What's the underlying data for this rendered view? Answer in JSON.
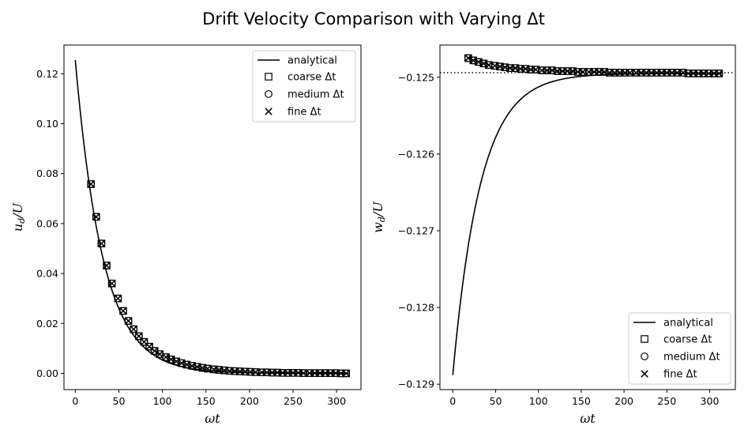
{
  "figure_title": "Drift Velocity Comparison with Varying Δt",
  "legend_labels": [
    "analytical",
    "coarse Δt",
    "medium Δt",
    "fine Δt"
  ],
  "colors": {
    "line": "#000000",
    "markers": "#000000",
    "frame": "#000000"
  },
  "chart_data": [
    {
      "type": "line+scatter",
      "xlabel": "ωt",
      "ylabel": "u_d/U",
      "xlim": [
        -13,
        328
      ],
      "ylim": [
        -0.0065,
        0.1315
      ],
      "xticks": [
        0,
        50,
        100,
        150,
        200,
        250,
        300
      ],
      "yticks": [
        0.0,
        0.02,
        0.04,
        0.06,
        0.08,
        0.1,
        0.12
      ],
      "ytick_labels": [
        "0.00",
        "0.02",
        "0.04",
        "0.06",
        "0.08",
        "0.10",
        "0.12"
      ],
      "legend": "top-right",
      "grid": false,
      "analytical": {
        "name": "analytical",
        "formula_note": "exponential decay",
        "y0": 0.1255,
        "decay": 0.0315
      },
      "series": [
        {
          "name": "coarse Δt",
          "marker": "square",
          "x": [
            18,
            24,
            30,
            36,
            42,
            49,
            55,
            61,
            67,
            73,
            79,
            85,
            91,
            97,
            104,
            110,
            116,
            122,
            128,
            134,
            140,
            146,
            152,
            159,
            165,
            171,
            177,
            183,
            189,
            195,
            201,
            207,
            214,
            220,
            226,
            232,
            238,
            244,
            250,
            256,
            262,
            269,
            275,
            281,
            287,
            293,
            299,
            305,
            311
          ],
          "y": [
            0.0758,
            0.0627,
            0.052,
            0.0432,
            0.036,
            0.03,
            0.025,
            0.021,
            0.0177,
            0.0149,
            0.0126,
            0.0107,
            0.009,
            0.0077,
            0.0065,
            0.0056,
            0.0048,
            0.0041,
            0.0035,
            0.003,
            0.0026,
            0.0022,
            0.0019,
            0.0016,
            0.0014,
            0.0012,
            0.001,
            0.0009,
            0.0008,
            0.0007,
            0.0006,
            0.0005,
            0.0004,
            0.0004,
            0.0003,
            0.0003,
            0.0002,
            0.0002,
            0.0002,
            0.0002,
            0.0001,
            0.0001,
            0.0001,
            0.0001,
            0.0001,
            0.0001,
            0.0001,
            0.0,
            0.0
          ]
        },
        {
          "name": "medium Δt",
          "marker": "circle",
          "x": [
            18,
            24,
            30,
            36,
            42,
            49,
            55,
            61,
            67,
            73,
            79,
            85,
            91,
            97,
            104,
            110,
            116,
            122,
            128,
            134,
            140,
            146,
            152,
            159,
            165,
            171,
            177,
            183,
            189,
            195,
            201,
            207,
            214,
            220,
            226,
            232,
            238,
            244,
            250,
            256,
            262,
            269,
            275,
            281,
            287,
            293,
            299,
            305,
            311
          ],
          "y": [
            0.0758,
            0.0627,
            0.052,
            0.0432,
            0.036,
            0.03,
            0.025,
            0.021,
            0.0177,
            0.0149,
            0.0126,
            0.0107,
            0.009,
            0.0077,
            0.0065,
            0.0056,
            0.0048,
            0.0041,
            0.0035,
            0.003,
            0.0026,
            0.0022,
            0.0019,
            0.0016,
            0.0014,
            0.0012,
            0.001,
            0.0009,
            0.0008,
            0.0007,
            0.0006,
            0.0005,
            0.0004,
            0.0004,
            0.0003,
            0.0003,
            0.0002,
            0.0002,
            0.0002,
            0.0002,
            0.0001,
            0.0001,
            0.0001,
            0.0001,
            0.0001,
            0.0001,
            0.0001,
            0.0,
            0.0
          ]
        },
        {
          "name": "fine Δt",
          "marker": "x",
          "x": [
            18,
            24,
            30,
            36,
            42,
            49,
            55,
            61,
            67,
            73,
            79,
            85,
            91,
            97,
            104,
            110,
            116,
            122,
            128,
            134,
            140,
            146,
            152,
            159,
            165,
            171,
            177,
            183,
            189,
            195,
            201,
            207,
            214,
            220,
            226,
            232,
            238,
            244,
            250,
            256,
            262,
            269,
            275,
            281,
            287,
            293,
            299,
            305,
            311
          ],
          "y": [
            0.0758,
            0.0627,
            0.052,
            0.0432,
            0.036,
            0.03,
            0.025,
            0.021,
            0.0177,
            0.0149,
            0.0126,
            0.0107,
            0.009,
            0.0077,
            0.0065,
            0.0056,
            0.0048,
            0.0041,
            0.0035,
            0.003,
            0.0026,
            0.0022,
            0.0019,
            0.0016,
            0.0014,
            0.0012,
            0.001,
            0.0009,
            0.0008,
            0.0007,
            0.0006,
            0.0005,
            0.0004,
            0.0004,
            0.0003,
            0.0003,
            0.0002,
            0.0002,
            0.0002,
            0.0002,
            0.0001,
            0.0001,
            0.0001,
            0.0001,
            0.0001,
            0.0001,
            0.0001,
            0.0,
            0.0
          ]
        }
      ]
    },
    {
      "type": "line+scatter",
      "xlabel": "ωt",
      "ylabel": "w_d/U",
      "xlim": [
        -15,
        330
      ],
      "ylim": [
        -0.12907,
        -0.12458
      ],
      "xticks": [
        0,
        50,
        100,
        150,
        200,
        250,
        300
      ],
      "yticks": [
        -0.129,
        -0.128,
        -0.127,
        -0.126,
        -0.125
      ],
      "ytick_labels": [
        "−0.129",
        "−0.128",
        "−0.127",
        "−0.126",
        "−0.125"
      ],
      "legend": "bottom-right",
      "grid": false,
      "reference_line": {
        "y": -0.12494,
        "style": "dotted"
      },
      "analytical": {
        "name": "analytical",
        "y_inf": -0.12495,
        "y0": -0.12888,
        "decay": 0.031
      },
      "series": [
        {
          "name": "coarse Δt",
          "marker": "square",
          "x": [
            18,
            24,
            30,
            36,
            42,
            49,
            55,
            61,
            67,
            73,
            79,
            85,
            91,
            97,
            104,
            110,
            116,
            122,
            128,
            134,
            140,
            146,
            152,
            159,
            165,
            171,
            177,
            183,
            189,
            195,
            201,
            207,
            214,
            220,
            226,
            232,
            238,
            244,
            250,
            256,
            262,
            269,
            275,
            281,
            287,
            293,
            299,
            305,
            311
          ],
          "y": [
            -0.12475,
            -0.12478,
            -0.1248,
            -0.12482,
            -0.12484,
            -0.12485,
            -0.12486,
            -0.12487,
            -0.12488,
            -0.12488,
            -0.12489,
            -0.12489,
            -0.1249,
            -0.1249,
            -0.12491,
            -0.12491,
            -0.12491,
            -0.12492,
            -0.12492,
            -0.12492,
            -0.12492,
            -0.12493,
            -0.12493,
            -0.12493,
            -0.12493,
            -0.12493,
            -0.12493,
            -0.12494,
            -0.12494,
            -0.12494,
            -0.12494,
            -0.12494,
            -0.12494,
            -0.12494,
            -0.12494,
            -0.12494,
            -0.12494,
            -0.12494,
            -0.12494,
            -0.12494,
            -0.12494,
            -0.12494,
            -0.12495,
            -0.12495,
            -0.12495,
            -0.12495,
            -0.12495,
            -0.12495,
            -0.12495
          ]
        },
        {
          "name": "medium Δt",
          "marker": "circle",
          "x": [
            18,
            24,
            30,
            36,
            42,
            49,
            55,
            61,
            67,
            73,
            79,
            85,
            91,
            97,
            104,
            110,
            116,
            122,
            128,
            134,
            140,
            146,
            152,
            159,
            165,
            171,
            177,
            183,
            189,
            195,
            201,
            207,
            214,
            220,
            226,
            232,
            238,
            244,
            250,
            256,
            262,
            269,
            275,
            281,
            287,
            293,
            299,
            305,
            311
          ],
          "y": [
            -0.12475,
            -0.12478,
            -0.1248,
            -0.12482,
            -0.12484,
            -0.12485,
            -0.12486,
            -0.12487,
            -0.12488,
            -0.12488,
            -0.12489,
            -0.12489,
            -0.1249,
            -0.1249,
            -0.12491,
            -0.12491,
            -0.12491,
            -0.12492,
            -0.12492,
            -0.12492,
            -0.12492,
            -0.12493,
            -0.12493,
            -0.12493,
            -0.12493,
            -0.12493,
            -0.12493,
            -0.12494,
            -0.12494,
            -0.12494,
            -0.12494,
            -0.12494,
            -0.12494,
            -0.12494,
            -0.12494,
            -0.12494,
            -0.12494,
            -0.12494,
            -0.12494,
            -0.12494,
            -0.12494,
            -0.12494,
            -0.12495,
            -0.12495,
            -0.12495,
            -0.12495,
            -0.12495,
            -0.12495,
            -0.12495
          ]
        },
        {
          "name": "fine Δt",
          "marker": "x",
          "x": [
            18,
            24,
            30,
            36,
            42,
            49,
            55,
            61,
            67,
            73,
            79,
            85,
            91,
            97,
            104,
            110,
            116,
            122,
            128,
            134,
            140,
            146,
            152,
            159,
            165,
            171,
            177,
            183,
            189,
            195,
            201,
            207,
            214,
            220,
            226,
            232,
            238,
            244,
            250,
            256,
            262,
            269,
            275,
            281,
            287,
            293,
            299,
            305,
            311
          ],
          "y": [
            -0.12475,
            -0.12478,
            -0.1248,
            -0.12482,
            -0.12484,
            -0.12485,
            -0.12486,
            -0.12487,
            -0.12488,
            -0.12488,
            -0.12489,
            -0.12489,
            -0.1249,
            -0.1249,
            -0.12491,
            -0.12491,
            -0.12491,
            -0.12492,
            -0.12492,
            -0.12492,
            -0.12492,
            -0.12493,
            -0.12493,
            -0.12493,
            -0.12493,
            -0.12493,
            -0.12493,
            -0.12494,
            -0.12494,
            -0.12494,
            -0.12494,
            -0.12494,
            -0.12494,
            -0.12494,
            -0.12494,
            -0.12494,
            -0.12494,
            -0.12494,
            -0.12494,
            -0.12494,
            -0.12494,
            -0.12494,
            -0.12495,
            -0.12495,
            -0.12495,
            -0.12495,
            -0.12495,
            -0.12495,
            -0.12495
          ]
        }
      ]
    }
  ]
}
